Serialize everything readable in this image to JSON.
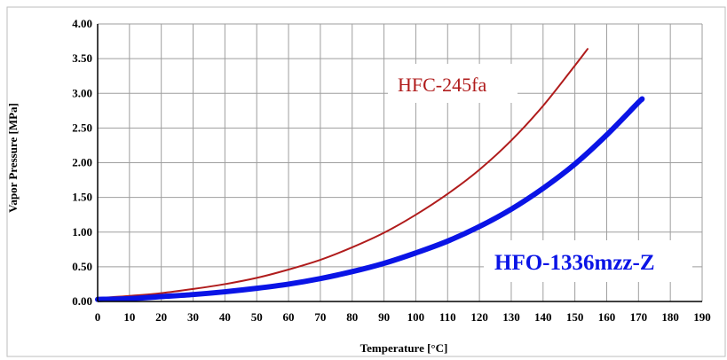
{
  "chart_data": {
    "type": "line",
    "xlabel": "Temperature [°C]",
    "ylabel": "Vapor Pressure  [MPa]",
    "xlim": [
      0,
      190
    ],
    "ylim": [
      0,
      4.0
    ],
    "xticks": [
      "0",
      "10",
      "20",
      "30",
      "40",
      "50",
      "60",
      "70",
      "80",
      "90",
      "100",
      "110",
      "120",
      "130",
      "140",
      "150",
      "160",
      "170",
      "180",
      "190"
    ],
    "yticks": [
      "0.00",
      "0.50",
      "1.00",
      "1.50",
      "2.00",
      "2.50",
      "3.00",
      "3.50",
      "4.00"
    ],
    "grid": true,
    "series": [
      {
        "name": "HFC-245fa",
        "color": "#b01c1c",
        "x": [
          0,
          10,
          20,
          30,
          40,
          50,
          60,
          70,
          80,
          90,
          100,
          110,
          120,
          130,
          140,
          150,
          154
        ],
        "y": [
          0.05,
          0.08,
          0.12,
          0.18,
          0.25,
          0.34,
          0.46,
          0.6,
          0.78,
          0.99,
          1.25,
          1.55,
          1.9,
          2.32,
          2.82,
          3.4,
          3.64
        ]
      },
      {
        "name": "HFO-1336mzz-Z",
        "color": "#0a14e6",
        "x": [
          0,
          10,
          20,
          30,
          40,
          50,
          60,
          70,
          80,
          90,
          100,
          110,
          120,
          130,
          140,
          150,
          160,
          170,
          171
        ],
        "y": [
          0.03,
          0.04,
          0.07,
          0.1,
          0.14,
          0.19,
          0.25,
          0.33,
          0.43,
          0.55,
          0.7,
          0.87,
          1.08,
          1.33,
          1.63,
          1.98,
          2.4,
          2.87,
          2.91
        ]
      }
    ]
  }
}
